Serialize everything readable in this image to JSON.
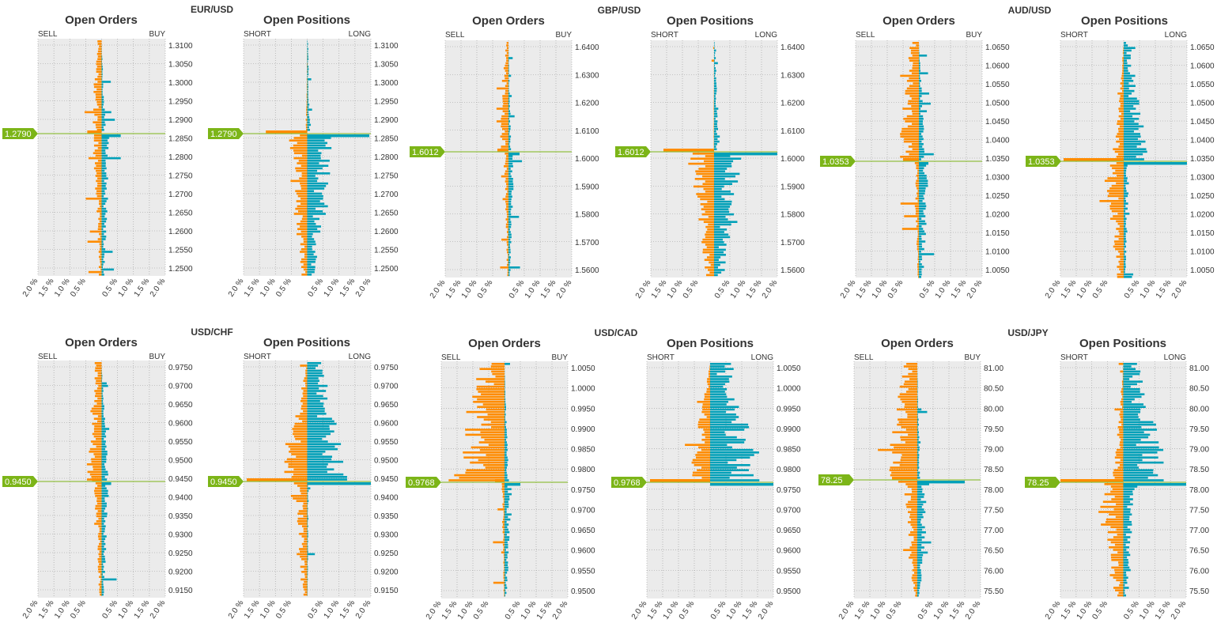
{
  "chart_data": [
    {
      "type": "bar",
      "pair": "EUR/USD",
      "title": "Open Orders",
      "left_label": "SELL",
      "right_label": "BUY",
      "price_ticks": [
        "1.3100",
        "1.3050",
        "1.3000",
        "1.2950",
        "1.2900",
        "1.2850",
        "1.2800",
        "1.2750",
        "1.2700",
        "1.2650",
        "1.2600",
        "1.2550",
        "1.2500"
      ],
      "x_ticks": [
        "2.0 %",
        "1.5 %",
        "1.0 %",
        "0.5 %",
        "",
        "0.5 %",
        "1.0 %",
        "1.5 %",
        "2.0 %"
      ],
      "xlim": [
        -2,
        2
      ],
      "current_price": "1.2790",
      "seed": 11,
      "upper_scale": [
        0.35,
        0.15,
        0.5
      ],
      "lower_scale": [
        0.3,
        0.3,
        0.4
      ],
      "upper_dominant": "sell",
      "lower_dominant": "buy",
      "near_spike": [
        0.45,
        0.6
      ]
    },
    {
      "type": "bar",
      "pair": "EUR/USD",
      "title": "Open Positions",
      "left_label": "SHORT",
      "right_label": "LONG",
      "price_ticks": [
        "1.3100",
        "1.3050",
        "1.3000",
        "1.2950",
        "1.2900",
        "1.2850",
        "1.2800",
        "1.2750",
        "1.2700",
        "1.2650",
        "1.2600",
        "1.2550",
        "1.2500"
      ],
      "x_ticks": [
        "2.0 %",
        "1.5 %",
        "1.0 %",
        "0.5 %",
        "",
        "0.5 %",
        "1.0 %",
        "1.5 %",
        "2.0 %"
      ],
      "xlim": [
        -2,
        2
      ],
      "current_price": "1.2790",
      "seed": 12,
      "upper_scale": [
        0.05,
        0.1,
        0.1
      ],
      "lower_scale": [
        0.6,
        0.9,
        0.1
      ],
      "upper_dominant": "buy",
      "lower_dominant": "sell",
      "near_spike": [
        1.3,
        1.95
      ]
    },
    {
      "type": "bar",
      "pair": "GBP/USD",
      "title": "Open Orders",
      "left_label": "SELL",
      "right_label": "BUY",
      "price_ticks": [
        "1.6400",
        "1.6300",
        "1.6200",
        "1.6100",
        "1.6000",
        "1.5900",
        "1.5800",
        "1.5700",
        "1.5600"
      ],
      "x_ticks": [
        "2.0 %",
        "1.5 %",
        "1.0 %",
        "0.5 %",
        "",
        "0.5 %",
        "1.0 %",
        "1.5 %",
        "2.0 %"
      ],
      "xlim": [
        -2,
        2
      ],
      "current_price": "1.6012",
      "seed": 21,
      "upper_scale": [
        0.3,
        0.1,
        0.3
      ],
      "lower_scale": [
        0.15,
        0.2,
        0.35
      ],
      "upper_dominant": "sell",
      "lower_dominant": "buy",
      "near_spike": [
        0.35,
        0.35
      ]
    },
    {
      "type": "bar",
      "pair": "GBP/USD",
      "title": "Open Positions",
      "left_label": "SHORT",
      "right_label": "LONG",
      "price_ticks": [
        "1.6400",
        "1.6300",
        "1.6200",
        "1.6100",
        "1.6000",
        "1.5900",
        "1.5800",
        "1.5700",
        "1.5600"
      ],
      "x_ticks": [
        "2.0 %",
        "1.5 %",
        "1.0 %",
        "0.5 %",
        "",
        "0.5 %",
        "1.0 %",
        "1.5 %",
        "2.0 %"
      ],
      "xlim": [
        -2,
        2
      ],
      "current_price": "1.6012",
      "seed": 22,
      "upper_scale": [
        0.02,
        0.15,
        0.1
      ],
      "lower_scale": [
        0.9,
        1.0,
        0.2
      ],
      "upper_dominant": "buy",
      "lower_dominant": "sell",
      "near_spike": [
        1.6,
        2.0
      ]
    },
    {
      "type": "bar",
      "pair": "AUD/USD",
      "title": "Open Orders",
      "left_label": "SELL",
      "right_label": "BUY",
      "price_ticks": [
        "1.0650",
        "1.0600",
        "1.0550",
        "1.0500",
        "1.0450",
        "1.0400",
        "1.0350",
        "1.0300",
        "1.0250",
        "1.0200",
        "1.0150",
        "1.0100",
        "1.0050"
      ],
      "x_ticks": [
        "2.0 %",
        "1.5 %",
        "1.0 %",
        "0.5 %",
        "",
        "0.5 %",
        "1.0 %",
        "1.5 %",
        "2.0 %"
      ],
      "xlim": [
        -2,
        2
      ],
      "current_price": "1.0353",
      "seed": 31,
      "upper_scale": [
        0.7,
        0.25,
        0.3
      ],
      "lower_scale": [
        0.15,
        0.4,
        0.5
      ],
      "upper_dominant": "sell",
      "lower_dominant": "buy",
      "near_spike": [
        0.5,
        0.3
      ]
    },
    {
      "type": "bar",
      "pair": "AUD/USD",
      "title": "Open Positions",
      "left_label": "SHORT",
      "right_label": "LONG",
      "price_ticks": [
        "1.0650",
        "1.0600",
        "1.0550",
        "1.0500",
        "1.0450",
        "1.0400",
        "1.0350",
        "1.0300",
        "1.0250",
        "1.0200",
        "1.0150",
        "1.0100",
        "1.0050"
      ],
      "x_ticks": [
        "2.0 %",
        "1.5 %",
        "1.0 %",
        "0.5 %",
        "",
        "0.5 %",
        "1.0 %",
        "1.5 %",
        "2.0 %"
      ],
      "xlim": [
        -2,
        2
      ],
      "current_price": "1.0353",
      "seed": 32,
      "upper_scale": [
        0.35,
        0.8,
        0.15
      ],
      "lower_scale": [
        0.7,
        0.2,
        0.3
      ],
      "upper_dominant": "buy",
      "lower_dominant": "sell",
      "near_spike": [
        1.9,
        2.0
      ]
    },
    {
      "type": "bar",
      "pair": "USD/CHF",
      "title": "Open Orders",
      "left_label": "SELL",
      "right_label": "BUY",
      "price_ticks": [
        "0.9750",
        "0.9700",
        "0.9650",
        "0.9600",
        "0.9550",
        "0.9500",
        "0.9450",
        "0.9400",
        "0.9350",
        "0.9300",
        "0.9250",
        "0.9200",
        "0.9150"
      ],
      "x_ticks": [
        "2.0 %",
        "1.5 %",
        "1.0 %",
        "0.5 %",
        "",
        "0.5 %",
        "1.0 %",
        "1.5 %",
        "2.0 %"
      ],
      "xlim": [
        -2,
        2
      ],
      "current_price": "0.9450",
      "seed": 41,
      "upper_scale": [
        0.55,
        0.25,
        0.3
      ],
      "lower_scale": [
        0.25,
        0.25,
        0.4
      ],
      "upper_dominant": "sell",
      "lower_dominant": "buy",
      "near_spike": [
        0.3,
        0.3
      ]
    },
    {
      "type": "bar",
      "pair": "USD/CHF",
      "title": "Open Positions",
      "left_label": "SHORT",
      "right_label": "LONG",
      "price_ticks": [
        "0.9750",
        "0.9700",
        "0.9650",
        "0.9600",
        "0.9550",
        "0.9500",
        "0.9450",
        "0.9400",
        "0.9350",
        "0.9300",
        "0.9250",
        "0.9200",
        "0.9150"
      ],
      "x_ticks": [
        "2.0 %",
        "1.5 %",
        "1.0 %",
        "0.5 %",
        "",
        "0.5 %",
        "1.0 %",
        "1.5 %",
        "2.0 %"
      ],
      "xlim": [
        -2,
        2
      ],
      "current_price": "0.9450",
      "seed": 42,
      "upper_scale": [
        0.9,
        1.5,
        0.3
      ],
      "lower_scale": [
        0.45,
        0.05,
        0.25
      ],
      "upper_dominant": "buy",
      "lower_dominant": "sell",
      "near_spike": [
        1.9,
        2.0
      ]
    },
    {
      "type": "bar",
      "pair": "USD/CAD",
      "title": "Open Orders",
      "left_label": "SELL",
      "right_label": "BUY",
      "price_ticks": [
        "1.0050",
        "1.0000",
        "0.9950",
        "0.9900",
        "0.9850",
        "0.9800",
        "0.9750",
        "0.9700",
        "0.9650",
        "0.9600",
        "0.9550",
        "0.9500"
      ],
      "x_ticks": [
        "2.0 %",
        "1.5 %",
        "1.0 %",
        "0.5 %",
        "",
        "0.5 %",
        "1.0 %",
        "1.5 %",
        "2.0 %"
      ],
      "xlim": [
        -2,
        2
      ],
      "current_price": "0.9768",
      "seed": 51,
      "upper_scale": [
        1.9,
        0.15,
        0.6
      ],
      "lower_scale": [
        0.1,
        0.25,
        0.35
      ],
      "upper_dominant": "sell",
      "lower_dominant": "buy",
      "near_spike": [
        0.3,
        0.5
      ]
    },
    {
      "type": "bar",
      "pair": "USD/CAD",
      "title": "Open Positions",
      "left_label": "SHORT",
      "right_label": "LONG",
      "price_ticks": [
        "1.0050",
        "1.0000",
        "0.9950",
        "0.9900",
        "0.9850",
        "0.9800",
        "0.9750",
        "0.9700",
        "0.9650",
        "0.9600",
        "0.9550",
        "0.9500"
      ],
      "x_ticks": [
        "2.0 %",
        "1.5 %",
        "1.0 %",
        "0.5 %",
        "",
        "0.5 %",
        "1.0 %",
        "1.5 %",
        "2.0 %"
      ],
      "xlim": [
        -2,
        2
      ],
      "current_price": "0.9768",
      "seed": 52,
      "upper_scale": [
        0.8,
        1.9,
        0.35
      ],
      "lower_scale": [
        0,
        0,
        0
      ],
      "upper_dominant": "buy",
      "lower_dominant": "sell",
      "near_spike": [
        1.9,
        2.0
      ]
    },
    {
      "type": "bar",
      "pair": "USD/JPY",
      "title": "Open Orders",
      "left_label": "SELL",
      "right_label": "BUY",
      "price_ticks": [
        "81.00",
        "80.50",
        "80.00",
        "79.50",
        "79.00",
        "78.50",
        "78.00",
        "77.50",
        "77.00",
        "76.50",
        "76.00",
        "75.50"
      ],
      "x_ticks": [
        "2.0 %",
        "1.5 %",
        "1.0 %",
        "0.5 %",
        "",
        "0.5 %",
        "1.0 %",
        "1.5 %",
        "2.0 %"
      ],
      "xlim": [
        -2,
        2
      ],
      "current_price": "78.25",
      "seed": 61,
      "upper_scale": [
        1.1,
        0.1,
        0.35
      ],
      "lower_scale": [
        0.45,
        0.4,
        0.3
      ],
      "upper_dominant": "sell",
      "lower_dominant": "buy",
      "near_spike": [
        0.8,
        1.5
      ]
    },
    {
      "type": "bar",
      "pair": "USD/JPY",
      "title": "Open Positions",
      "left_label": "SHORT",
      "right_label": "LONG",
      "price_ticks": [
        "81.00",
        "80.50",
        "80.00",
        "79.50",
        "79.00",
        "78.50",
        "78.00",
        "77.50",
        "77.00",
        "76.50",
        "76.00",
        "75.50"
      ],
      "x_ticks": [
        "2.0 %",
        "1.5 %",
        "1.0 %",
        "0.5 %",
        "",
        "0.5 %",
        "1.0 %",
        "1.5 %",
        "2.0 %"
      ],
      "xlim": [
        -2,
        2
      ],
      "current_price": "78.25",
      "seed": 62,
      "upper_scale": [
        0.35,
        1.6,
        0.3
      ],
      "lower_scale": [
        0.8,
        0.4,
        0.2
      ],
      "upper_dominant": "buy",
      "lower_dominant": "sell",
      "near_spike": [
        2.0,
        2.0
      ]
    }
  ],
  "colors": {
    "sell": "#ff8c00",
    "buy": "#00a0b8",
    "price_marker": "#7cb518",
    "plot_bg": "#ebebeb",
    "grid": "#999999"
  },
  "layout_labels": {
    "pairs": [
      "EUR/USD",
      "GBP/USD",
      "AUD/USD",
      "USD/CHF",
      "USD/CAD",
      "USD/JPY"
    ]
  }
}
